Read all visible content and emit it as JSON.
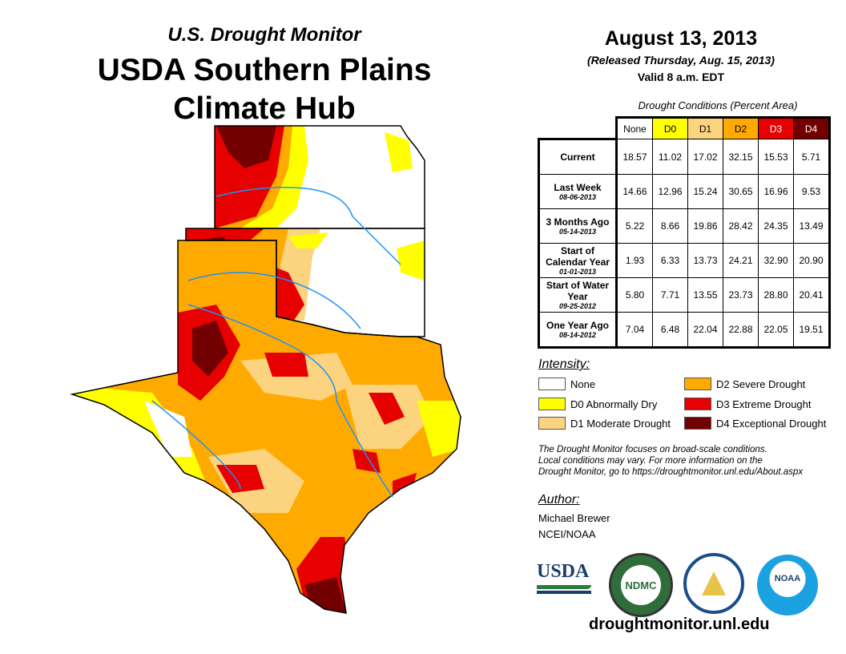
{
  "header": {
    "subtitle": "U.S. Drought Monitor",
    "title_line1": "USDA Southern Plains",
    "title_line2": "Climate Hub"
  },
  "date": {
    "map_date": "August 13, 2013",
    "released": "(Released Thursday, Aug. 15, 2013)",
    "valid": "Valid 8 a.m. EDT"
  },
  "table": {
    "caption": "Drought Conditions (Percent Area)",
    "columns": [
      "None",
      "D0",
      "D1",
      "D2",
      "D3",
      "D4"
    ],
    "column_colors": [
      "#ffffff",
      "#ffff00",
      "#fcd37f",
      "#ffaa00",
      "#e60000",
      "#730000"
    ],
    "rows": [
      {
        "label": "Current",
        "date": "",
        "values": [
          "18.57",
          "11.02",
          "17.02",
          "32.15",
          "15.53",
          "5.71"
        ]
      },
      {
        "label": "Last Week",
        "date": "08-06-2013",
        "values": [
          "14.66",
          "12.96",
          "15.24",
          "30.65",
          "16.96",
          "9.53"
        ]
      },
      {
        "label": "3 Months Ago",
        "date": "05-14-2013",
        "values": [
          "5.22",
          "8.66",
          "19.86",
          "28.42",
          "24.35",
          "13.49"
        ]
      },
      {
        "label": "Start of Calendar Year",
        "date": "01-01-2013",
        "values": [
          "1.93",
          "6.33",
          "13.73",
          "24.21",
          "32.90",
          "20.90"
        ]
      },
      {
        "label": "Start of Water Year",
        "date": "09-25-2012",
        "values": [
          "5.80",
          "7.71",
          "13.55",
          "23.73",
          "28.80",
          "20.41"
        ]
      },
      {
        "label": "One Year Ago",
        "date": "08-14-2012",
        "values": [
          "7.04",
          "6.48",
          "22.04",
          "22.88",
          "22.05",
          "19.51"
        ]
      }
    ]
  },
  "legend": {
    "title": "Intensity:",
    "items": [
      {
        "label": "None",
        "color": "#ffffff"
      },
      {
        "label": "D0 Abnormally Dry",
        "color": "#ffff00"
      },
      {
        "label": "D1 Moderate Drought",
        "color": "#fcd37f"
      },
      {
        "label": "D2 Severe Drought",
        "color": "#ffaa00"
      },
      {
        "label": "D3 Extreme Drought",
        "color": "#e60000"
      },
      {
        "label": "D4 Exceptional Drought",
        "color": "#730000"
      }
    ]
  },
  "note": [
    "The Drought Monitor focuses on broad-scale conditions.",
    "Local conditions may vary. For more information on the",
    "Drought Monitor, go to https://droughtmonitor.unl.edu/About.aspx"
  ],
  "author": {
    "heading": "Author:",
    "name": "Michael Brewer",
    "org": "NCEI/NOAA"
  },
  "logos": {
    "usda": "USDA",
    "ndmc": "NDMC",
    "noaa": "NOAA"
  },
  "footer_url": "droughtmonitor.unl.edu"
}
